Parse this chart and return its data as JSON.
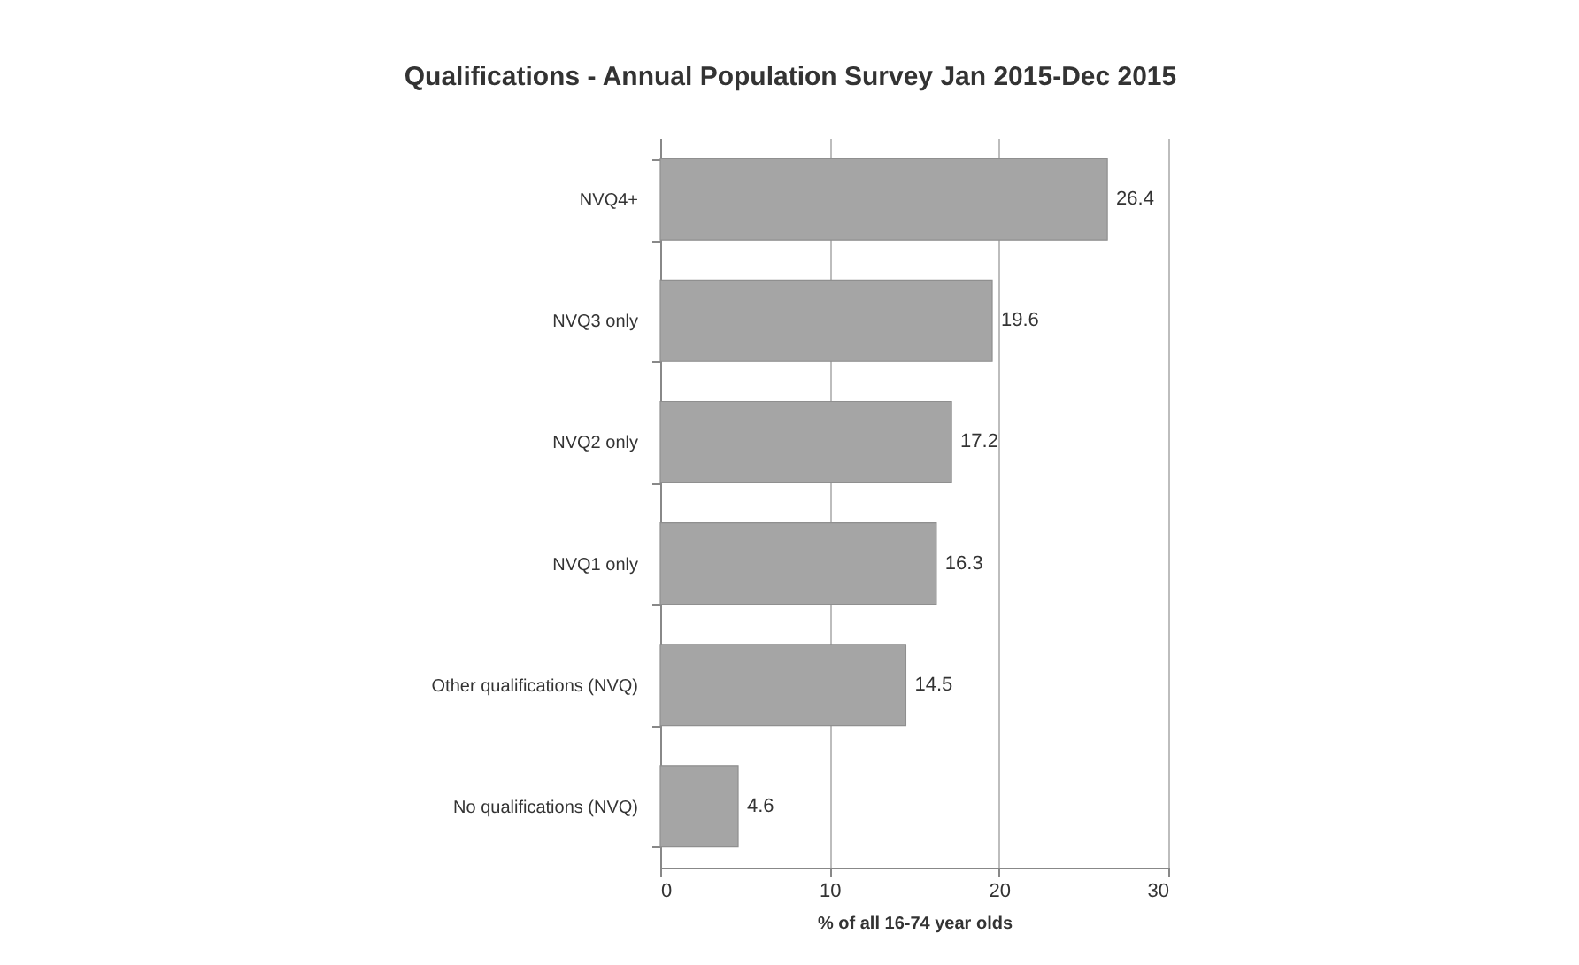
{
  "chart_data": {
    "type": "bar",
    "orientation": "horizontal",
    "title": "Qualifications - Annual Population Survey Jan 2015-Dec 2015",
    "xlabel": "% of all 16-74 year olds",
    "categories": [
      "NVQ4+",
      "NVQ3 only",
      "NVQ2 only",
      "NVQ1 only",
      "Other qualifications (NVQ)",
      "No qualifications (NVQ)"
    ],
    "values": [
      26.4,
      19.6,
      17.2,
      16.3,
      14.5,
      4.6
    ],
    "color": "#a5a5a5",
    "xlim": [
      0,
      30
    ],
    "xticks": [
      0,
      10,
      20,
      30
    ],
    "grid": "x",
    "data_labels": true
  }
}
